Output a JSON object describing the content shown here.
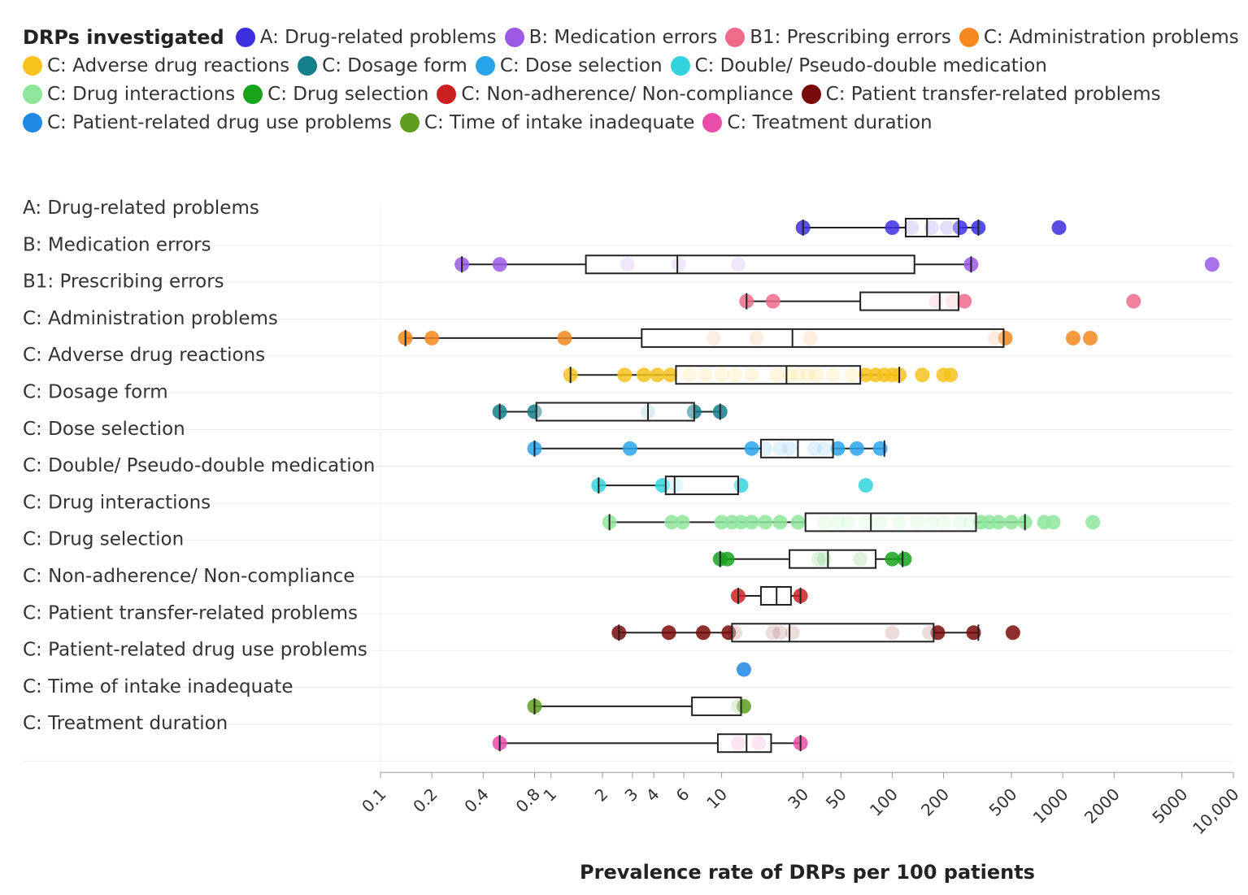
{
  "chart_data": {
    "type": "boxplot",
    "title": "",
    "legend_title": "DRPs investigated",
    "legend_position": "top",
    "xlabel": "Prevalence rate of DRPs per 100 patients",
    "ylabel": "",
    "x_scale": "log",
    "xlim": [
      0.1,
      10000
    ],
    "grid": true,
    "x_ticks": [
      {
        "value": 0.1,
        "label": "0.1"
      },
      {
        "value": 0.2,
        "label": "0.2"
      },
      {
        "value": 0.4,
        "label": "0.4"
      },
      {
        "value": 0.8,
        "label": "0.8"
      },
      {
        "value": 1,
        "label": "1"
      },
      {
        "value": 2,
        "label": "2"
      },
      {
        "value": 3,
        "label": "3"
      },
      {
        "value": 4,
        "label": "4"
      },
      {
        "value": 6,
        "label": "6"
      },
      {
        "value": 10,
        "label": "10"
      },
      {
        "value": 30,
        "label": "30"
      },
      {
        "value": 50,
        "label": "50"
      },
      {
        "value": 100,
        "label": "100"
      },
      {
        "value": 200,
        "label": "200"
      },
      {
        "value": 500,
        "label": "500"
      },
      {
        "value": 1000,
        "label": "1000"
      },
      {
        "value": 2000,
        "label": "2000"
      },
      {
        "value": 5000,
        "label": "5000"
      },
      {
        "value": 10000,
        "label": "10,000"
      }
    ],
    "series": [
      {
        "name": "A: Drug-related problems",
        "color": "#3b2fe0",
        "box": {
          "whisker_low": 30,
          "q1": 120,
          "median": 160,
          "q3": 245,
          "whisker_high": 320
        },
        "points": [
          30,
          100,
          130,
          170,
          210,
          250,
          320,
          950
        ]
      },
      {
        "name": "B: Medication errors",
        "color": "#9b59e6",
        "box": {
          "whisker_low": 0.3,
          "q1": 1.6,
          "median": 5.5,
          "q3": 135,
          "whisker_high": 290
        },
        "points": [
          0.3,
          0.5,
          2.8,
          5.6,
          12.5,
          290,
          7500
        ]
      },
      {
        "name": "B1: Prescribing errors",
        "color": "#ef6b8a",
        "box": {
          "whisker_low": 14,
          "q1": 65,
          "median": 190,
          "q3": 245,
          "whisker_high": 245
        },
        "points": [
          14,
          20,
          180,
          225,
          265,
          2600
        ]
      },
      {
        "name": "C: Administration problems",
        "color": "#f5881f",
        "box": {
          "whisker_low": 0.14,
          "q1": 3.4,
          "median": 26,
          "q3": 450,
          "whisker_high": 450
        },
        "points": [
          0.14,
          0.2,
          1.2,
          9,
          16,
          33,
          400,
          460,
          1150,
          1450
        ]
      },
      {
        "name": "C: Adverse drug reactions",
        "color": "#f6c21c",
        "box": {
          "whisker_low": 1.3,
          "q1": 5.4,
          "median": 24,
          "q3": 65,
          "whisker_high": 110
        },
        "points": [
          1.3,
          2.7,
          3.5,
          4.2,
          5,
          6.5,
          8,
          10,
          12,
          15,
          21,
          25,
          28,
          32,
          36,
          45,
          58,
          70,
          80,
          90,
          100,
          110,
          150,
          200,
          220
        ]
      },
      {
        "name": "C: Dosage form",
        "color": "#157f8c",
        "box": {
          "whisker_low": 0.5,
          "q1": 0.82,
          "median": 3.7,
          "q3": 6.9,
          "whisker_high": 9.8
        },
        "points": [
          0.5,
          0.8,
          3.7,
          6.9,
          9.8
        ]
      },
      {
        "name": "C: Dose selection",
        "color": "#2aa5ec",
        "box": {
          "whisker_low": 0.8,
          "q1": 17,
          "median": 28,
          "q3": 45,
          "whisker_high": 90
        },
        "points": [
          0.8,
          2.9,
          15,
          18,
          22,
          25,
          35,
          40,
          48,
          62,
          85
        ]
      },
      {
        "name": "C: Double/ Pseudo-double medication",
        "color": "#32d3dc",
        "box": {
          "whisker_low": 1.9,
          "q1": 4.7,
          "median": 5.3,
          "q3": 12.5,
          "whisker_high": 12.5
        },
        "points": [
          1.9,
          4.5,
          5.4,
          13,
          70
        ]
      },
      {
        "name": "C: Drug interactions",
        "color": "#8ee69c",
        "box": {
          "whisker_low": 2.2,
          "q1": 31,
          "median": 75,
          "q3": 310,
          "whisker_high": 600
        },
        "points": [
          2.2,
          5.1,
          5.9,
          10,
          11.5,
          13,
          15,
          18,
          22,
          28,
          40,
          48,
          55,
          70,
          85,
          110,
          140,
          170,
          200,
          250,
          290,
          330,
          370,
          420,
          500,
          600,
          780,
          880,
          1500
        ]
      },
      {
        "name": "C: Drug selection",
        "color": "#18a31d",
        "box": {
          "whisker_low": 9.8,
          "q1": 25,
          "median": 42,
          "q3": 80,
          "whisker_high": 115
        },
        "points": [
          9.8,
          10.8,
          37,
          40,
          65,
          100,
          118
        ]
      },
      {
        "name": "C: Non-adherence/ Non-compliance",
        "color": "#cc2121",
        "box": {
          "whisker_low": 12.5,
          "q1": 17,
          "median": 21,
          "q3": 25.5,
          "whisker_high": 29
        },
        "points": [
          12.5,
          29
        ]
      },
      {
        "name": "C: Patient transfer-related problems",
        "color": "#7a0a0a",
        "box": {
          "whisker_low": 2.5,
          "q1": 11.5,
          "median": 25,
          "q3": 175,
          "whisker_high": 320
        },
        "points": [
          2.5,
          4.9,
          7.8,
          11,
          12,
          20,
          22,
          26,
          100,
          165,
          185,
          300,
          510
        ]
      },
      {
        "name": "C: Patient-related drug use problems",
        "color": "#1e88e5",
        "box": null,
        "points": [
          13.5
        ]
      },
      {
        "name": "C: Time of intake inadequate",
        "color": "#5e9e1e",
        "box": {
          "whisker_low": 0.8,
          "q1": 6.7,
          "median": 13,
          "q3": 13,
          "whisker_high": 13
        },
        "points": [
          0.8,
          12.5,
          13.5
        ]
      },
      {
        "name": "C: Treatment duration",
        "color": "#e94ca9",
        "box": {
          "whisker_low": 0.5,
          "q1": 9.5,
          "median": 14,
          "q3": 19.5,
          "whisker_high": 29
        },
        "points": [
          0.5,
          12.5,
          16.5,
          29
        ]
      }
    ]
  }
}
